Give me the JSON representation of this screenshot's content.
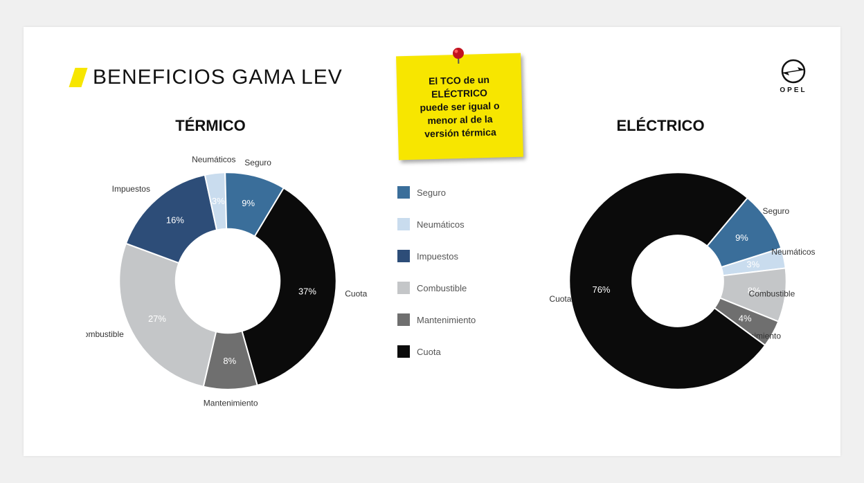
{
  "title": "BENEFICIOS GAMA LEV",
  "logo_label": "OPEL",
  "sticky_lines": [
    "El  TCO de un",
    "ELÉCTRICO",
    "puede ser igual o",
    "menor al de la",
    "versión térmica"
  ],
  "legend": [
    {
      "name": "Seguro",
      "color": "#3a6e9a"
    },
    {
      "name": "Neumáticos",
      "color": "#c9dcee"
    },
    {
      "name": "Impuestos",
      "color": "#2d4d78"
    },
    {
      "name": "Combustible",
      "color": "#c4c6c8"
    },
    {
      "name": "Mantenimiento",
      "color": "#6f6f6f"
    },
    {
      "name": "Cuota",
      "color": "#0b0b0b"
    }
  ],
  "colors": {
    "accent": "#f7e600",
    "text": "#111111",
    "bg": "#ffffff",
    "pin_head": "#c1121f",
    "pin_shine": "#ff5a5a"
  },
  "charts": {
    "termico": {
      "title": "TÉRMICO",
      "type": "donut",
      "inner_ratio": 0.48,
      "size": 330,
      "start_angle_deg": -59,
      "slices": [
        {
          "label": "Cuota",
          "value": 37,
          "color": "#0b0b0b",
          "label_side": "right"
        },
        {
          "label": "Mantenimiento",
          "value": 8,
          "color": "#6f6f6f",
          "label_side": "bottom"
        },
        {
          "label": "Combustible",
          "value": 27,
          "color": "#c4c6c8",
          "label_side": "left",
          "pct_text_color": "#333"
        },
        {
          "label": "Impuestos",
          "value": 16,
          "color": "#2d4d78",
          "label_side": "left"
        },
        {
          "label": "Neumáticos",
          "value": 3,
          "color": "#c9dcee",
          "label_side": "top",
          "pct_text_color": "#333"
        },
        {
          "label": "Seguro",
          "value": 9,
          "color": "#3a6e9a",
          "label_side": "top"
        }
      ]
    },
    "electrico": {
      "title": "ELÉCTRICO",
      "type": "donut",
      "inner_ratio": 0.42,
      "size": 330,
      "start_angle_deg": -50,
      "slices": [
        {
          "label": "Seguro",
          "value": 9,
          "color": "#3a6e9a",
          "label_side": "top"
        },
        {
          "label": "Neumáticos",
          "value": 3,
          "color": "#c9dcee",
          "label_side": "top",
          "pct_text_color": "#333"
        },
        {
          "label": "Combustible",
          "value": 8,
          "color": "#c4c6c8",
          "label_side": "left",
          "pct_text_color": "#333"
        },
        {
          "label": "Mantenimiento",
          "value": 4,
          "color": "#6f6f6f",
          "label_side": "left"
        },
        {
          "label": "Cuota",
          "value": 76,
          "color": "#0b0b0b",
          "label_side": "bottom"
        }
      ]
    }
  }
}
